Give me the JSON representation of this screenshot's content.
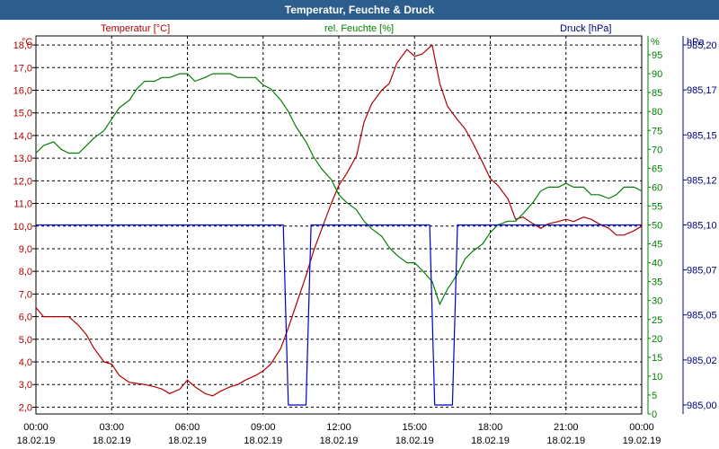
{
  "window": {
    "title": "Temperatur, Feuchte & Druck"
  },
  "chart_data": {
    "type": "line",
    "title": "Temperatur, Feuchte & Druck",
    "grid": true,
    "x": {
      "range_hours": [
        0,
        24
      ],
      "ticks": [
        {
          "h": 0,
          "time": "00:00",
          "date": "18.02.19"
        },
        {
          "h": 3,
          "time": "03:00",
          "date": "18.02.19"
        },
        {
          "h": 6,
          "time": "06:00",
          "date": "18.02.19"
        },
        {
          "h": 9,
          "time": "09:00",
          "date": "18.02.19"
        },
        {
          "h": 12,
          "time": "12:00",
          "date": "18.02.19"
        },
        {
          "h": 15,
          "time": "15:00",
          "date": "18.02.19"
        },
        {
          "h": 18,
          "time": "18:00",
          "date": "18.02.19"
        },
        {
          "h": 21,
          "time": "21:00",
          "date": "18.02.19"
        },
        {
          "h": 24,
          "time": "00:00",
          "date": "19.02.19"
        }
      ]
    },
    "axes": {
      "temperature": {
        "label": "Temperatur [°C]",
        "unit": "°C",
        "color": "#b00000",
        "range": [
          1.7,
          18.4
        ],
        "ticks": [
          "2,0",
          "3,0",
          "4,0",
          "5,0",
          "6,0",
          "7,0",
          "8,0",
          "9,0",
          "10,0",
          "11,0",
          "12,0",
          "13,0",
          "14,0",
          "15,0",
          "16,0",
          "17,0",
          "18,0"
        ],
        "tick_values": [
          2,
          3,
          4,
          5,
          6,
          7,
          8,
          9,
          10,
          11,
          12,
          13,
          14,
          15,
          16,
          17,
          18
        ]
      },
      "humidity": {
        "label": "rel. Feuchte [%]",
        "unit": "%",
        "color": "#008000",
        "range": [
          0,
          100
        ],
        "ticks": [
          "0",
          "5",
          "10",
          "15",
          "20",
          "25",
          "30",
          "35",
          "40",
          "45",
          "50",
          "55",
          "60",
          "65",
          "70",
          "75",
          "80",
          "85",
          "90",
          "95"
        ],
        "tick_values": [
          0,
          5,
          10,
          15,
          20,
          25,
          30,
          35,
          40,
          45,
          50,
          55,
          60,
          65,
          70,
          75,
          80,
          85,
          90,
          95
        ]
      },
      "pressure": {
        "label": "Druck [hPa]",
        "unit": "hPa",
        "color": "#000080",
        "range": [
          984.995,
          985.205
        ],
        "ticks": [
          "985,00",
          "985,02",
          "985,05",
          "985,07",
          "985,10",
          "985,12",
          "985,15",
          "985,17",
          "985,20"
        ],
        "tick_values": [
          985.0,
          985.025,
          985.05,
          985.075,
          985.1,
          985.125,
          985.15,
          985.175,
          985.2
        ]
      }
    },
    "series": [
      {
        "name": "Temperatur [°C]",
        "axis": "temperature",
        "color": "#b00000",
        "x": [
          0,
          0.3,
          0.7,
          1,
          1.3,
          1.7,
          2,
          2.3,
          2.7,
          3,
          3.3,
          3.7,
          4,
          4.3,
          4.7,
          5,
          5.3,
          5.7,
          6,
          6.3,
          6.7,
          7,
          7.3,
          7.7,
          8,
          8.3,
          8.7,
          9,
          9.3,
          9.7,
          10,
          10.3,
          10.7,
          11,
          11.3,
          11.7,
          12,
          12.3,
          12.7,
          13,
          13.3,
          13.7,
          14,
          14.3,
          14.7,
          15,
          15.3,
          15.7,
          16,
          16.3,
          16.7,
          17,
          17.3,
          17.7,
          18,
          18.3,
          18.7,
          19,
          19.3,
          19.7,
          20,
          20.3,
          20.7,
          21,
          21.3,
          21.7,
          22,
          22.3,
          22.7,
          23,
          23.3,
          23.7,
          24
        ],
        "values": [
          6.4,
          6.0,
          6.0,
          6.0,
          6.0,
          5.6,
          5.2,
          4.6,
          4.0,
          3.9,
          3.4,
          3.1,
          3.05,
          3.0,
          2.9,
          2.8,
          2.6,
          2.8,
          3.2,
          2.9,
          2.6,
          2.5,
          2.7,
          2.9,
          3.0,
          3.2,
          3.4,
          3.6,
          3.9,
          4.6,
          5.5,
          6.5,
          7.8,
          8.9,
          9.8,
          11.0,
          11.8,
          12.3,
          13.1,
          14.6,
          15.4,
          16.0,
          16.3,
          17.2,
          17.8,
          17.5,
          17.6,
          18.0,
          16.3,
          15.3,
          14.7,
          14.3,
          13.7,
          12.8,
          12.1,
          11.8,
          11.2,
          10.3,
          10.4,
          10.1,
          9.9,
          10.1,
          10.2,
          10.3,
          10.2,
          10.4,
          10.3,
          10.1,
          9.9,
          9.6,
          9.6,
          9.8,
          10.0
        ]
      },
      {
        "name": "rel. Feuchte [%]",
        "axis": "humidity",
        "color": "#008000",
        "x": [
          0,
          0.3,
          0.7,
          1,
          1.3,
          1.7,
          2,
          2.3,
          2.7,
          3,
          3.3,
          3.7,
          4,
          4.3,
          4.7,
          5,
          5.3,
          5.7,
          6,
          6.3,
          6.7,
          7,
          7.3,
          7.7,
          8,
          8.3,
          8.7,
          9,
          9.3,
          9.7,
          10,
          10.3,
          10.7,
          11,
          11.3,
          11.7,
          12,
          12.3,
          12.7,
          13,
          13.3,
          13.7,
          14,
          14.3,
          14.7,
          15,
          15.3,
          15.7,
          16,
          16.3,
          16.7,
          17,
          17.3,
          17.7,
          18,
          18.3,
          18.7,
          19,
          19.3,
          19.7,
          20,
          20.3,
          20.7,
          21,
          21.3,
          21.7,
          22,
          22.3,
          22.7,
          23,
          23.3,
          23.7,
          24
        ],
        "values": [
          69,
          71,
          72,
          70,
          69,
          69,
          71,
          73,
          75,
          78,
          81,
          83,
          86,
          88,
          88,
          89,
          89,
          90,
          90,
          88,
          89,
          90,
          90,
          90,
          89,
          89,
          89,
          87,
          86,
          83,
          80,
          76,
          72,
          68,
          65,
          62,
          58,
          56,
          54,
          51,
          49,
          47,
          44,
          42,
          40,
          40,
          38,
          35,
          29,
          33,
          37,
          41,
          43,
          45,
          48,
          50,
          51,
          51,
          53,
          56,
          59,
          60,
          60,
          61,
          60,
          60,
          58,
          58,
          57,
          58,
          60,
          60,
          59
        ]
      },
      {
        "name": "Druck [hPa]",
        "axis": "pressure",
        "color": "#0000cc",
        "x": [
          0,
          9.8,
          10.0,
          10.7,
          10.9,
          15.6,
          15.8,
          16.5,
          16.7,
          24
        ],
        "values": [
          985.1,
          985.1,
          985.0,
          985.0,
          985.1,
          985.1,
          985.0,
          985.0,
          985.1,
          985.1
        ]
      }
    ]
  }
}
